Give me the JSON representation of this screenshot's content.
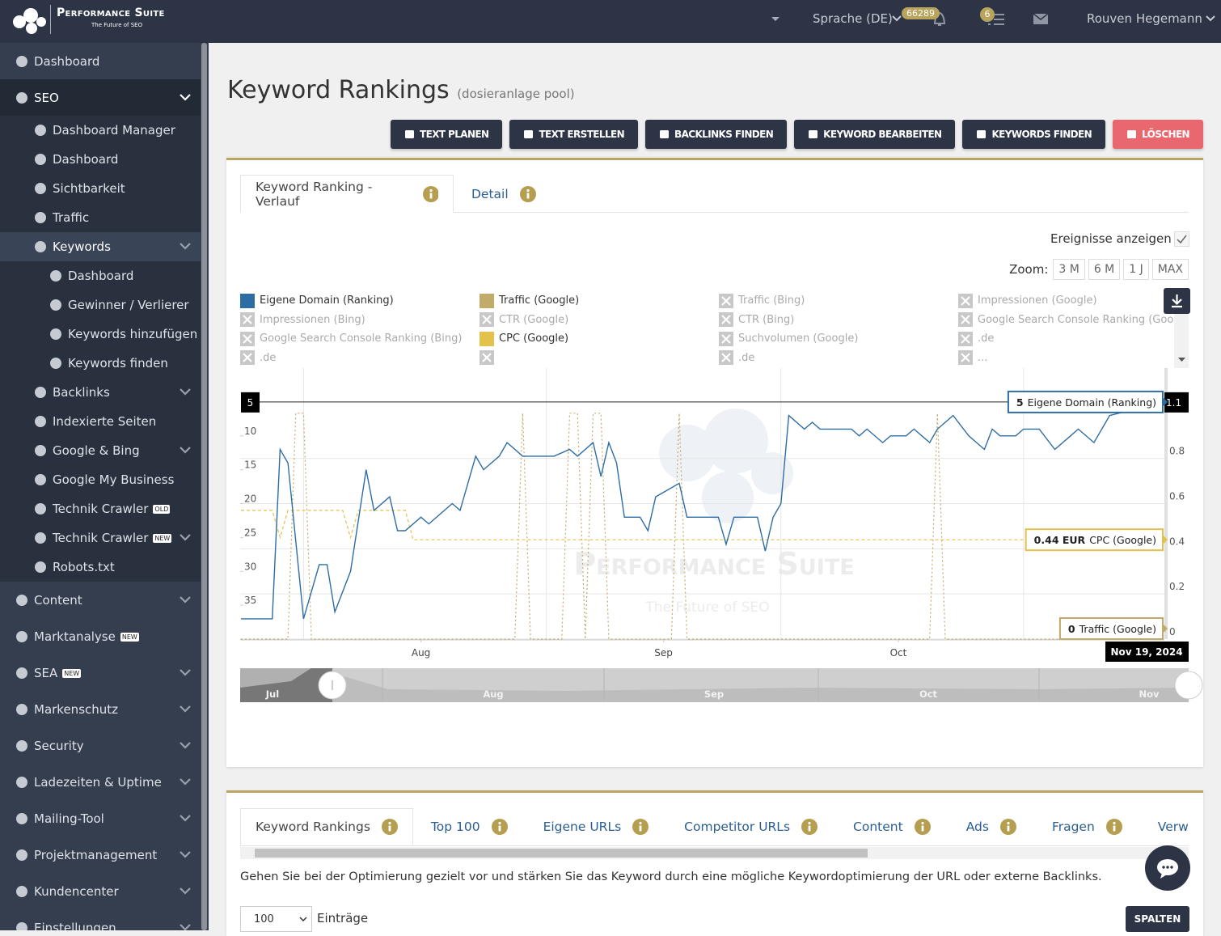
{
  "header": {
    "brand": "Performance Suite",
    "tagline": "The Future of SEO",
    "language": "Sprache (DE)",
    "notifications": "66289",
    "tasks": "6",
    "user": "Rouven Hegemann"
  },
  "sidebar": [
    {
      "label": "Dashboard",
      "level": 0
    },
    {
      "label": "SEO",
      "level": 0,
      "active": true,
      "expandable": true
    },
    {
      "label": "Dashboard Manager",
      "level": 1
    },
    {
      "label": "Dashboard",
      "level": 1
    },
    {
      "label": "Sichtbarkeit",
      "level": 1
    },
    {
      "label": "Traffic",
      "level": 1
    },
    {
      "label": "Keywords",
      "level": 1,
      "active": true,
      "expandable": true
    },
    {
      "label": "Dashboard",
      "level": 2
    },
    {
      "label": "Gewinner / Verlierer",
      "level": 2
    },
    {
      "label": "Keywords hinzufügen",
      "level": 2
    },
    {
      "label": "Keywords finden",
      "level": 2
    },
    {
      "label": "Backlinks",
      "level": 1,
      "expandable": true
    },
    {
      "label": "Indexierte Seiten",
      "level": 1
    },
    {
      "label": "Google & Bing",
      "level": 1,
      "expandable": true
    },
    {
      "label": "Google My Business",
      "level": 1
    },
    {
      "label": "Technik Crawler",
      "level": 1,
      "badge": "OLD"
    },
    {
      "label": "Technik Crawler",
      "level": 1,
      "badge": "NEW",
      "expandable": true
    },
    {
      "label": "Robots.txt",
      "level": 1
    },
    {
      "label": "Content",
      "level": 0,
      "expandable": true
    },
    {
      "label": "Marktanalyse",
      "level": 0,
      "badge": "NEW"
    },
    {
      "label": "SEA",
      "level": 0,
      "badge": "NEW",
      "expandable": true
    },
    {
      "label": "Markenschutz",
      "level": 0,
      "expandable": true
    },
    {
      "label": "Security",
      "level": 0,
      "expandable": true
    },
    {
      "label": "Ladezeiten & Uptime",
      "level": 0,
      "expandable": true
    },
    {
      "label": "Mailing-Tool",
      "level": 0,
      "expandable": true
    },
    {
      "label": "Projektmanagement",
      "level": 0,
      "expandable": true
    },
    {
      "label": "Kundencenter",
      "level": 0,
      "expandable": true
    },
    {
      "label": "Einstellungen",
      "level": 0,
      "expandable": true
    }
  ],
  "page": {
    "title": "Keyword Rankings",
    "subtitle": "(dosieranlage pool)"
  },
  "actions": [
    {
      "label": "TEXT PLANEN",
      "color": "#2c3446"
    },
    {
      "label": "TEXT ERSTELLEN",
      "color": "#2c3446"
    },
    {
      "label": "BACKLINKS FINDEN",
      "color": "#2c3446"
    },
    {
      "label": "KEYWORD BEARBEITEN",
      "color": "#2c3446"
    },
    {
      "label": "KEYWORDS FINDEN",
      "color": "#2c3446"
    },
    {
      "label": "LÖSCHEN",
      "color": "#e9686f"
    }
  ],
  "chart_panel": {
    "tabs": [
      "Keyword Ranking - Verlauf",
      "Detail"
    ],
    "events_label": "Ereignisse anzeigen",
    "zoom_label": "Zoom:",
    "zoom_options": [
      "3 M",
      "6 M",
      "1 J",
      "MAX"
    ],
    "legend": [
      {
        "name": "Eigene Domain (Ranking)",
        "color": "#2e6da4"
      },
      {
        "name": "Traffic (Google)",
        "color": "#c2ab6a"
      },
      {
        "name": "Traffic (Bing)"
      },
      {
        "name": "Impressionen (Google)"
      },
      {
        "name": "Impressionen (Bing)"
      },
      {
        "name": "CTR (Google)"
      },
      {
        "name": "CTR (Bing)"
      },
      {
        "name": "Google Search Console Ranking (Google)"
      },
      {
        "name": "Google Search Console Ranking (Bing)"
      },
      {
        "name": "CPC (Google)",
        "color": "#e3c14a"
      },
      {
        "name": "Suchvolumen (Google)"
      },
      {
        "name": ".de"
      },
      {
        "name": ".de"
      },
      {
        "name": ".de"
      },
      {
        "name": "..."
      }
    ]
  },
  "chart_data": {
    "type": "line",
    "xlim": [
      "2024-07-24",
      "2024-11-19"
    ],
    "xticks": [
      {
        "value": "2024-08-16",
        "label": "Aug"
      },
      {
        "value": "2024-09-16",
        "label": "Sep"
      },
      {
        "value": "2024-10-16",
        "label": "Oct"
      }
    ],
    "xgrid": [
      "2024-08-01",
      "2024-09-01",
      "2024-10-01",
      "2024-11-01"
    ],
    "ylim": [
      40,
      0
    ],
    "yticks": [
      10,
      15,
      20,
      25,
      30,
      35
    ],
    "y2lim": [
      0,
      1.2
    ],
    "y2ticks": [
      0,
      0.2,
      0.4,
      0.6,
      0.8
    ],
    "grid": true,
    "series": [
      {
        "name": "Eigene Domain (Ranking)",
        "color": "#2e6da4",
        "style": "solid",
        "x": [
          "2024-07-24",
          "2024-07-28",
          "2024-07-29",
          "2024-07-30",
          "2024-08-01",
          "2024-08-03",
          "2024-08-04",
          "2024-08-05",
          "2024-08-07",
          "2024-08-09",
          "2024-08-10",
          "2024-08-12",
          "2024-08-13",
          "2024-08-14",
          "2024-08-16",
          "2024-08-17",
          "2024-08-19",
          "2024-08-20",
          "2024-08-21",
          "2024-08-23",
          "2024-08-24",
          "2024-08-26",
          "2024-08-27",
          "2024-08-29",
          "2024-09-02",
          "2024-09-04",
          "2024-09-05",
          "2024-09-07",
          "2024-09-08",
          "2024-09-09",
          "2024-09-10",
          "2024-09-11",
          "2024-09-13",
          "2024-09-14",
          "2024-09-15",
          "2024-09-18",
          "2024-09-19",
          "2024-09-23",
          "2024-09-24",
          "2024-09-25",
          "2024-09-28",
          "2024-09-29",
          "2024-09-30",
          "2024-10-01",
          "2024-10-02",
          "2024-10-04",
          "2024-10-05",
          "2024-10-06",
          "2024-10-10",
          "2024-10-11",
          "2024-10-12",
          "2024-10-14",
          "2024-10-15",
          "2024-10-17",
          "2024-10-18",
          "2024-10-20",
          "2024-10-21",
          "2024-10-23",
          "2024-10-25",
          "2024-10-27",
          "2024-10-28",
          "2024-10-29",
          "2024-10-31",
          "2024-11-01",
          "2024-11-03",
          "2024-11-05",
          "2024-11-07",
          "2024-11-08",
          "2024-11-10",
          "2024-11-12",
          "2024-11-19"
        ],
        "values": [
          37,
          37,
          12,
          14,
          37,
          29,
          29,
          36,
          30,
          15,
          21,
          19,
          24,
          24,
          22,
          23,
          21,
          20,
          21,
          13,
          15,
          13,
          11,
          13,
          13,
          12,
          13,
          11,
          16,
          11,
          14,
          22,
          22,
          24,
          19,
          17,
          22,
          22,
          26,
          22,
          22,
          27,
          22,
          20,
          7,
          9,
          8,
          9,
          9,
          10,
          9,
          11,
          10,
          10,
          9,
          11,
          9,
          7,
          10,
          12,
          9,
          10,
          10,
          9,
          9,
          12,
          10,
          9,
          11,
          7,
          5
        ]
      },
      {
        "name": "CPC (Google)",
        "color": "#e3c14a",
        "style": "dashed",
        "axis": "y2",
        "tooltip_label": "0.44 EUR",
        "x": [
          "2024-07-24",
          "2024-07-28",
          "2024-07-29",
          "2024-07-30",
          "2024-08-06",
          "2024-08-07",
          "2024-08-08",
          "2024-08-14",
          "2024-08-15",
          "2024-11-19"
        ],
        "values": [
          0.57,
          0.57,
          0.45,
          0.57,
          0.57,
          0.45,
          0.57,
          0.57,
          0.44,
          0.44
        ]
      },
      {
        "name": "Traffic (Google)",
        "color": "#c2ab6a",
        "style": "dotted",
        "axis": "y2",
        "x": [
          "2024-07-24",
          "2024-07-30",
          "2024-07-31",
          "2024-08-01",
          "2024-08-02",
          "2024-08-28",
          "2024-08-29",
          "2024-08-30",
          "2024-09-03",
          "2024-09-04",
          "2024-09-05",
          "2024-09-06",
          "2024-09-07",
          "2024-09-08",
          "2024-09-09",
          "2024-09-17",
          "2024-09-18",
          "2024-09-19",
          "2024-10-20",
          "2024-10-21",
          "2024-10-22",
          "2024-11-19"
        ],
        "values": [
          0,
          0,
          1,
          1,
          0,
          0,
          1,
          0,
          0,
          1,
          1,
          0,
          1,
          1,
          0,
          0,
          1,
          0,
          0,
          1,
          0,
          0
        ]
      }
    ],
    "crosshair": {
      "y": 5,
      "y2": 1.1
    },
    "tooltip_date": "Nov 19, 2024",
    "watermark": {
      "title": "Performance Suite",
      "subtitle": "The Future of SEO"
    },
    "navigator": [
      "Jul",
      "Aug",
      "Sep",
      "Oct",
      "Nov"
    ]
  },
  "table_panel": {
    "tabs": [
      "Keyword Rankings",
      "Top 100",
      "Eigene URLs",
      "Competitor URLs",
      "Content",
      "Ads",
      "Fragen",
      "Verwandte"
    ],
    "description": "Gehen Sie bei der Optimierung gezielt vor und stärken Sie das Keyword durch eine mögliche Keywordoptimierung der URL oder externe Backlinks.",
    "page_size": "100",
    "entries_label": "Einträge",
    "columns_button": "SPALTEN"
  }
}
